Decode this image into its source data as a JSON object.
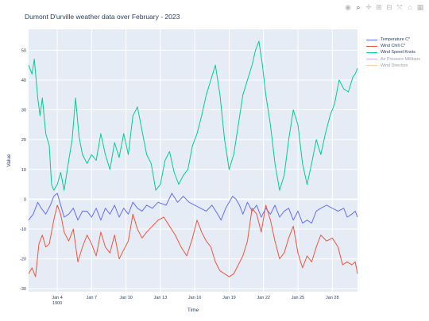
{
  "title": "Dumont D'urville weather data over February - 2023",
  "modebar": {
    "icons": [
      "camera-icon",
      "zoom-icon",
      "pan-icon",
      "zoom-in-icon",
      "zoom-out-icon",
      "autoscale-icon",
      "reset-axes-icon",
      "plotly-logo-icon"
    ],
    "glyphs": [
      "◉",
      "⌕",
      "✛",
      "⊞",
      "⊟",
      "⤧",
      "⌂",
      "▦"
    ]
  },
  "colors": {
    "plot_bg": "#e5ecf6",
    "grid": "#ffffff",
    "temperature": "#636efa",
    "wind_chill": "#ef553b",
    "wind_speed": "#00cc96",
    "air_pressure": "#ab63fa",
    "wind_direction": "#ffa15a"
  },
  "chart_data": {
    "type": "line",
    "title": "Dumont D'urville weather data over February - 2023",
    "xlabel": "Time",
    "ylabel": "Value",
    "x_range_days": [
      1.5,
      30.2
    ],
    "ylim": [
      -31,
      57
    ],
    "grid": true,
    "legend_position": "top-right",
    "x_ticks": [
      {
        "day": 4,
        "label": "Jan 4",
        "sublabel": "1900"
      },
      {
        "day": 7,
        "label": "Jan 7"
      },
      {
        "day": 10,
        "label": "Jan 10"
      },
      {
        "day": 13,
        "label": "Jan 13"
      },
      {
        "day": 16,
        "label": "Jan 16"
      },
      {
        "day": 19,
        "label": "Jan 19"
      },
      {
        "day": 22,
        "label": "Jan 22"
      },
      {
        "day": 25,
        "label": "Jan 25"
      },
      {
        "day": 28,
        "label": "Jan 28"
      }
    ],
    "y_ticks": [
      -30,
      -20,
      -10,
      0,
      10,
      20,
      30,
      40,
      50
    ],
    "series": [
      {
        "name": "Temperature C*",
        "key": "temperature",
        "visible": true,
        "points": [
          [
            1.5,
            -7
          ],
          [
            1.9,
            -5
          ],
          [
            2.3,
            -1
          ],
          [
            2.6,
            -3
          ],
          [
            3.0,
            -5
          ],
          [
            3.4,
            -2
          ],
          [
            3.7,
            1
          ],
          [
            4.0,
            2
          ],
          [
            4.3,
            -2
          ],
          [
            4.6,
            -6
          ],
          [
            5.0,
            -5
          ],
          [
            5.4,
            -3
          ],
          [
            5.8,
            -7
          ],
          [
            6.2,
            -4
          ],
          [
            6.6,
            -4
          ],
          [
            7.0,
            -6
          ],
          [
            7.4,
            -3
          ],
          [
            7.8,
            -7
          ],
          [
            8.2,
            -3
          ],
          [
            8.6,
            -5
          ],
          [
            9.0,
            -2
          ],
          [
            9.4,
            -6
          ],
          [
            9.8,
            -3
          ],
          [
            10.2,
            -5
          ],
          [
            10.6,
            -1
          ],
          [
            11.0,
            -3
          ],
          [
            11.4,
            -4
          ],
          [
            11.8,
            -2
          ],
          [
            12.3,
            -3
          ],
          [
            12.8,
            -1
          ],
          [
            13.5,
            -2
          ],
          [
            14.0,
            2
          ],
          [
            14.5,
            -1
          ],
          [
            15.0,
            1
          ],
          [
            15.5,
            -1
          ],
          [
            16.0,
            -2
          ],
          [
            16.5,
            -3
          ],
          [
            17.0,
            -4
          ],
          [
            17.5,
            -2
          ],
          [
            18.0,
            -5
          ],
          [
            18.3,
            -7
          ],
          [
            18.7,
            -3
          ],
          [
            19.0,
            -1
          ],
          [
            19.3,
            1
          ],
          [
            19.6,
            0
          ],
          [
            19.9,
            -2
          ],
          [
            20.2,
            -5
          ],
          [
            20.6,
            -1
          ],
          [
            21.0,
            -4
          ],
          [
            21.4,
            -2
          ],
          [
            21.8,
            -6
          ],
          [
            22.2,
            -3
          ],
          [
            22.6,
            -5
          ],
          [
            23.0,
            -2
          ],
          [
            23.4,
            -6
          ],
          [
            23.8,
            -4
          ],
          [
            24.2,
            -3
          ],
          [
            24.6,
            -7
          ],
          [
            25.0,
            -4
          ],
          [
            25.4,
            -8
          ],
          [
            25.8,
            -7
          ],
          [
            26.2,
            -8
          ],
          [
            26.6,
            -4
          ],
          [
            27.0,
            -3
          ],
          [
            27.5,
            -2
          ],
          [
            28.0,
            -3
          ],
          [
            28.5,
            -4
          ],
          [
            29.0,
            -3
          ],
          [
            29.3,
            -6
          ],
          [
            29.7,
            -5
          ],
          [
            30.0,
            -4
          ],
          [
            30.2,
            -6
          ]
        ]
      },
      {
        "name": "Wind Chill C*",
        "key": "wind_chill",
        "visible": true,
        "points": [
          [
            1.5,
            -25
          ],
          [
            1.8,
            -23
          ],
          [
            2.1,
            -26
          ],
          [
            2.4,
            -15
          ],
          [
            2.7,
            -12
          ],
          [
            3.0,
            -16
          ],
          [
            3.3,
            -15
          ],
          [
            3.7,
            -7
          ],
          [
            4.0,
            -2
          ],
          [
            4.3,
            -5
          ],
          [
            4.6,
            -11
          ],
          [
            5.0,
            -14
          ],
          [
            5.4,
            -10
          ],
          [
            5.8,
            -21
          ],
          [
            6.2,
            -16
          ],
          [
            6.6,
            -12
          ],
          [
            7.0,
            -15
          ],
          [
            7.4,
            -19
          ],
          [
            7.8,
            -11
          ],
          [
            8.2,
            -16
          ],
          [
            8.6,
            -18
          ],
          [
            9.0,
            -12
          ],
          [
            9.4,
            -20
          ],
          [
            9.8,
            -17
          ],
          [
            10.2,
            -14
          ],
          [
            10.6,
            -5
          ],
          [
            11.0,
            -10
          ],
          [
            11.4,
            -13
          ],
          [
            11.8,
            -11
          ],
          [
            12.3,
            -9
          ],
          [
            12.8,
            -7
          ],
          [
            13.3,
            -6
          ],
          [
            13.8,
            -9
          ],
          [
            14.3,
            -12
          ],
          [
            14.8,
            -16
          ],
          [
            15.3,
            -19
          ],
          [
            15.8,
            -13
          ],
          [
            16.2,
            -7
          ],
          [
            16.6,
            -11
          ],
          [
            17.0,
            -14
          ],
          [
            17.4,
            -16
          ],
          [
            17.8,
            -21
          ],
          [
            18.2,
            -24
          ],
          [
            18.6,
            -25
          ],
          [
            19.0,
            -26
          ],
          [
            19.4,
            -25
          ],
          [
            19.8,
            -22
          ],
          [
            20.2,
            -19
          ],
          [
            20.6,
            -14
          ],
          [
            21.0,
            -3
          ],
          [
            21.4,
            -5
          ],
          [
            21.8,
            -11
          ],
          [
            22.2,
            -2
          ],
          [
            22.6,
            -7
          ],
          [
            23.0,
            -14
          ],
          [
            23.4,
            -20
          ],
          [
            23.8,
            -18
          ],
          [
            24.2,
            -13
          ],
          [
            24.6,
            -9
          ],
          [
            25.0,
            -18
          ],
          [
            25.4,
            -23
          ],
          [
            25.8,
            -19
          ],
          [
            26.2,
            -21
          ],
          [
            26.6,
            -16
          ],
          [
            27.0,
            -12
          ],
          [
            27.5,
            -14
          ],
          [
            28.0,
            -13
          ],
          [
            28.5,
            -16
          ],
          [
            28.9,
            -22
          ],
          [
            29.3,
            -21
          ],
          [
            29.7,
            -22
          ],
          [
            30.0,
            -21
          ],
          [
            30.2,
            -25
          ]
        ]
      },
      {
        "name": "Wind Speed Knots",
        "key": "wind_speed",
        "visible": true,
        "points": [
          [
            1.5,
            45
          ],
          [
            1.8,
            42
          ],
          [
            2.0,
            47
          ],
          [
            2.3,
            34
          ],
          [
            2.5,
            28
          ],
          [
            2.7,
            34
          ],
          [
            3.0,
            22
          ],
          [
            3.3,
            18
          ],
          [
            3.5,
            5
          ],
          [
            3.7,
            3
          ],
          [
            4.0,
            5
          ],
          [
            4.3,
            9
          ],
          [
            4.6,
            3
          ],
          [
            5.0,
            13
          ],
          [
            5.3,
            20
          ],
          [
            5.6,
            34
          ],
          [
            5.9,
            21
          ],
          [
            6.2,
            15
          ],
          [
            6.6,
            12
          ],
          [
            7.0,
            15
          ],
          [
            7.4,
            13
          ],
          [
            7.8,
            22
          ],
          [
            8.2,
            15
          ],
          [
            8.6,
            10
          ],
          [
            9.0,
            19
          ],
          [
            9.4,
            14
          ],
          [
            9.8,
            22
          ],
          [
            10.2,
            15
          ],
          [
            10.6,
            28
          ],
          [
            11.0,
            31
          ],
          [
            11.4,
            23
          ],
          [
            11.8,
            15
          ],
          [
            12.2,
            12
          ],
          [
            12.6,
            3
          ],
          [
            13.0,
            5
          ],
          [
            13.4,
            13
          ],
          [
            13.8,
            16
          ],
          [
            14.2,
            9
          ],
          [
            14.6,
            5
          ],
          [
            15.0,
            8
          ],
          [
            15.4,
            10
          ],
          [
            15.8,
            18
          ],
          [
            16.2,
            22
          ],
          [
            16.6,
            28
          ],
          [
            17.0,
            35
          ],
          [
            17.4,
            40
          ],
          [
            17.8,
            45
          ],
          [
            18.2,
            35
          ],
          [
            18.6,
            20
          ],
          [
            19.0,
            10
          ],
          [
            19.4,
            15
          ],
          [
            19.8,
            25
          ],
          [
            20.2,
            35
          ],
          [
            20.6,
            40
          ],
          [
            21.0,
            45
          ],
          [
            21.3,
            50
          ],
          [
            21.6,
            53
          ],
          [
            21.9,
            45
          ],
          [
            22.2,
            35
          ],
          [
            22.6,
            25
          ],
          [
            23.0,
            12
          ],
          [
            23.4,
            3
          ],
          [
            23.8,
            8
          ],
          [
            24.2,
            20
          ],
          [
            24.6,
            30
          ],
          [
            25.0,
            25
          ],
          [
            25.4,
            12
          ],
          [
            25.8,
            5
          ],
          [
            26.2,
            12
          ],
          [
            26.6,
            20
          ],
          [
            27.0,
            15
          ],
          [
            27.4,
            22
          ],
          [
            27.8,
            28
          ],
          [
            28.2,
            32
          ],
          [
            28.6,
            40
          ],
          [
            29.0,
            37
          ],
          [
            29.4,
            36
          ],
          [
            29.8,
            41
          ],
          [
            30.0,
            42
          ],
          [
            30.2,
            44
          ]
        ]
      },
      {
        "name": "Air Pressure Millibars",
        "key": "air_pressure",
        "visible": false,
        "points": []
      },
      {
        "name": "Wind Direction",
        "key": "wind_direction",
        "visible": false,
        "points": []
      }
    ]
  }
}
